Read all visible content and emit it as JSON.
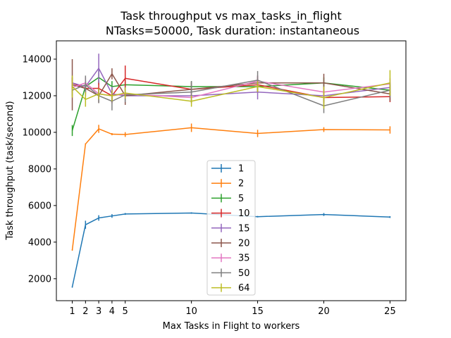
{
  "chart_data": {
    "type": "line",
    "title": "Task throughput vs max_tasks_in_flight",
    "subtitle": "NTasks=50000, Task duration: instantaneous",
    "xlabel": "Max Tasks in Flight to workers",
    "ylabel": "Task throughput (task/second)",
    "xlim": [
      -0.2,
      26.2
    ],
    "ylim": [
      800,
      15000
    ],
    "x_ticks": [
      1,
      2,
      3,
      4,
      5,
      10,
      15,
      20,
      25
    ],
    "y_ticks": [
      2000,
      4000,
      6000,
      8000,
      10000,
      12000,
      14000
    ],
    "x": [
      1,
      2,
      3,
      4,
      5,
      10,
      15,
      20,
      25
    ],
    "legend_position": "center",
    "grid": false,
    "series": [
      {
        "name": "1",
        "color": "#1f77b4",
        "values": [
          1550,
          4950,
          5320,
          5430,
          5540,
          5590,
          5390,
          5510,
          5370
        ],
        "errors": [
          40,
          220,
          150,
          100,
          50,
          40,
          40,
          80,
          50
        ]
      },
      {
        "name": "2",
        "color": "#ff7f0e",
        "values": [
          3570,
          9360,
          10190,
          9900,
          9880,
          10250,
          9940,
          10150,
          10130
        ],
        "errors": [
          40,
          40,
          220,
          60,
          130,
          230,
          200,
          130,
          200
        ]
      },
      {
        "name": "5",
        "color": "#2ca02c",
        "values": [
          10100,
          12500,
          13000,
          12500,
          12600,
          12500,
          12500,
          12700,
          12300
        ],
        "errors": [
          300,
          200,
          400,
          300,
          300,
          300,
          300,
          300,
          300
        ]
      },
      {
        "name": "10",
        "color": "#d62728",
        "values": [
          12700,
          12400,
          12400,
          12000,
          12950,
          12350,
          12600,
          11900,
          11950
        ],
        "errors": [
          300,
          300,
          400,
          400,
          700,
          400,
          400,
          300,
          300
        ]
      },
      {
        "name": "15",
        "color": "#9467bd",
        "values": [
          12700,
          12500,
          13500,
          12100,
          12000,
          12000,
          12200,
          12000,
          12450
        ],
        "errors": [
          300,
          300,
          800,
          400,
          400,
          400,
          400,
          300,
          300
        ]
      },
      {
        "name": "20",
        "color": "#8c564b",
        "values": [
          12600,
          12400,
          12000,
          13200,
          12000,
          12350,
          12700,
          12700,
          12100
        ],
        "errors": [
          1400,
          400,
          400,
          300,
          500,
          400,
          400,
          500,
          400
        ]
      },
      {
        "name": "35",
        "color": "#e377c2",
        "values": [
          12450,
          12700,
          12100,
          12000,
          12100,
          11900,
          12800,
          12200,
          12650
        ],
        "errors": [
          300,
          300,
          300,
          300,
          300,
          300,
          300,
          300,
          300
        ]
      },
      {
        "name": "50",
        "color": "#7f7f7f",
        "values": [
          12300,
          12600,
          12000,
          11700,
          12050,
          12200,
          12850,
          11450,
          12300
        ],
        "errors": [
          300,
          500,
          400,
          500,
          400,
          600,
          500,
          400,
          400
        ]
      },
      {
        "name": "64",
        "color": "#bcbd22",
        "values": [
          12500,
          11800,
          12100,
          12000,
          12150,
          11700,
          12500,
          11900,
          12700
        ],
        "errors": [
          600,
          400,
          300,
          300,
          300,
          300,
          300,
          600,
          700
        ]
      }
    ]
  }
}
